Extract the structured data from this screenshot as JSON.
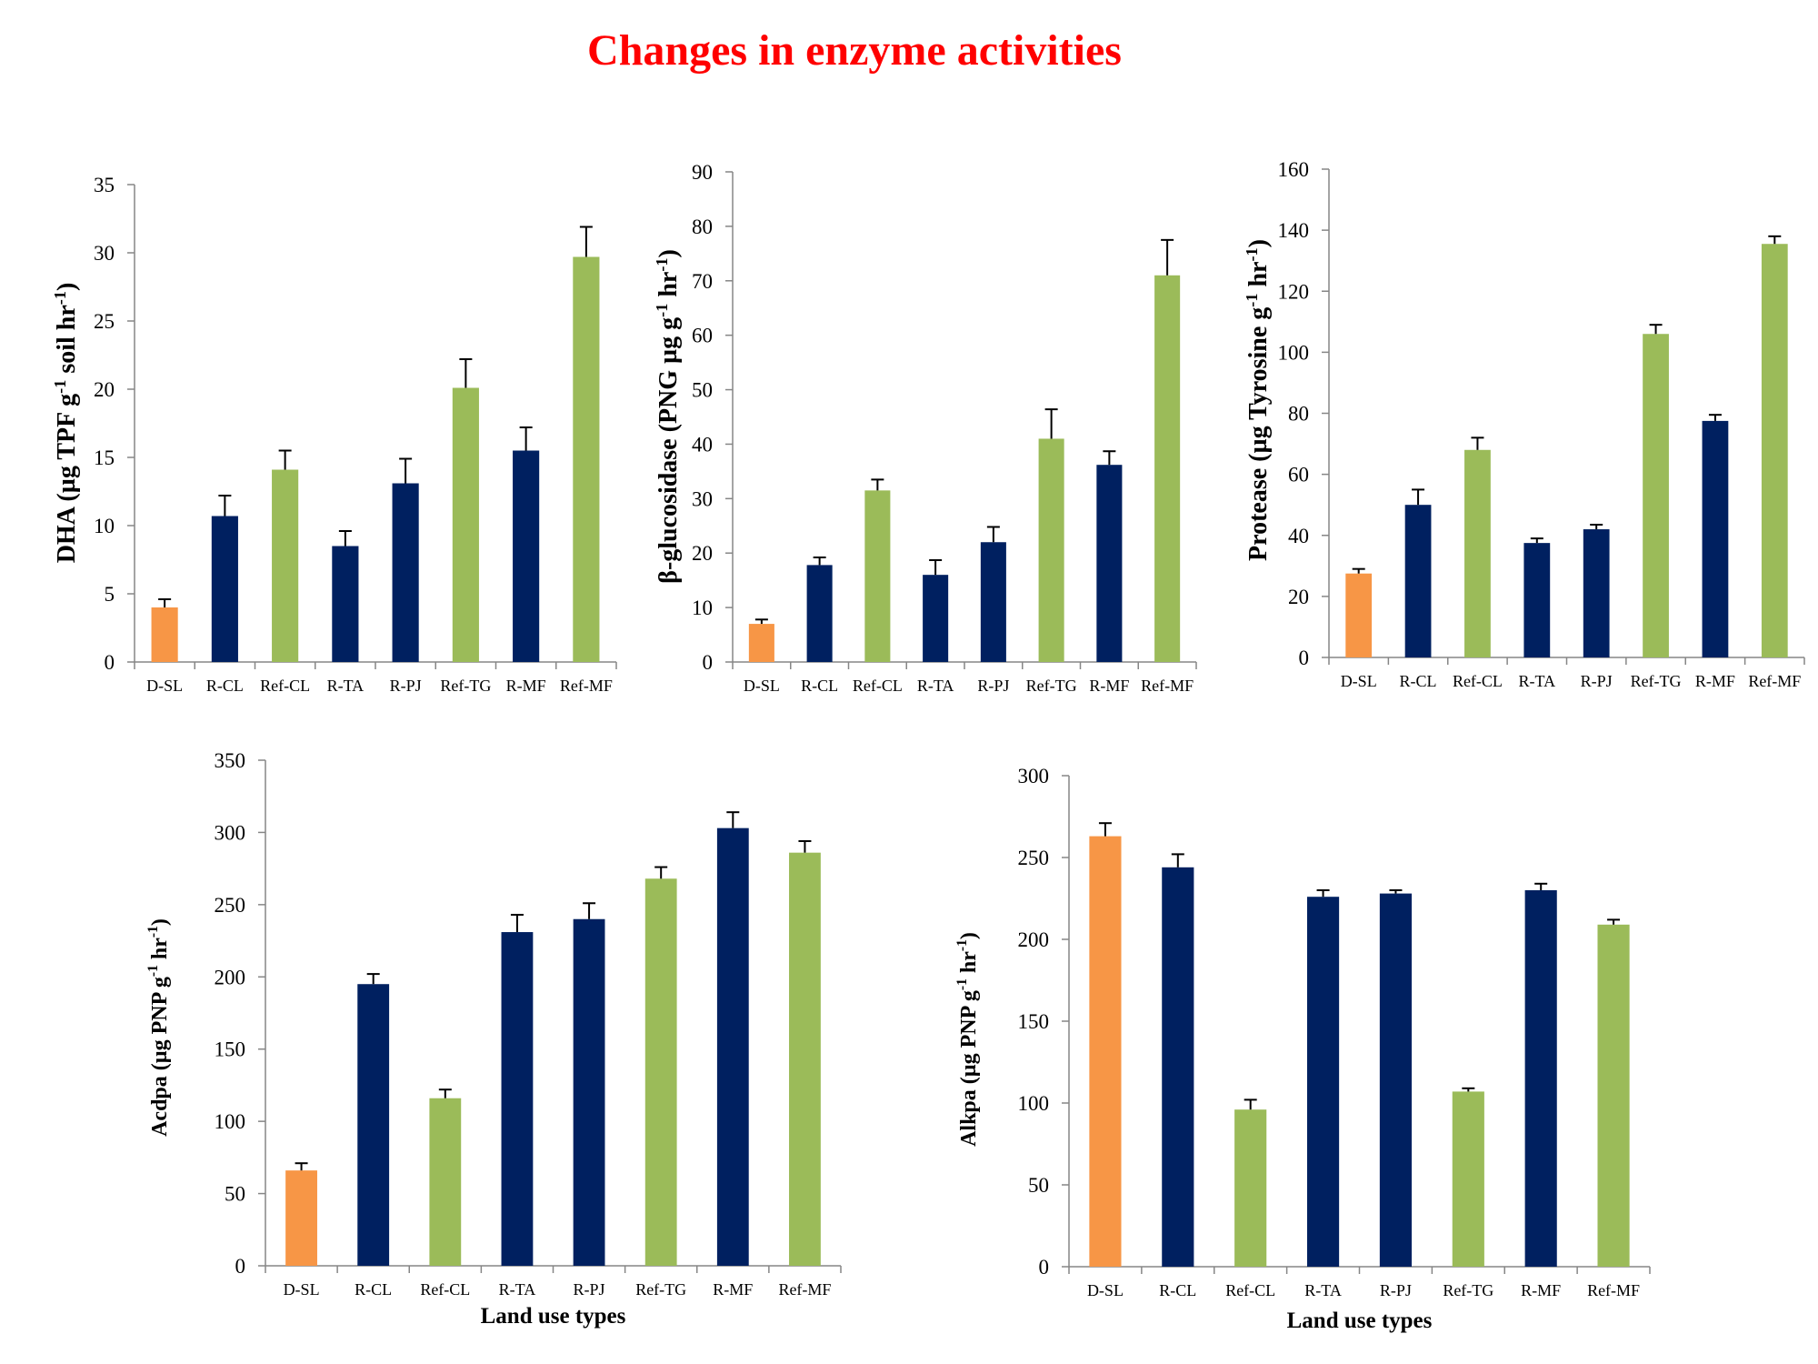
{
  "title": "Changes in enzyme activities",
  "colors": {
    "orange": "#f79646",
    "navy": "#002060",
    "green": "#9bbb59",
    "axis": "#868686"
  },
  "chart_data": [
    {
      "id": "dha",
      "type": "bar",
      "categories": [
        "D-SL",
        "R-CL",
        "Ref-CL",
        "R-TA",
        "R-PJ",
        "Ref-TG",
        "R-MF",
        "Ref-MF"
      ],
      "values": [
        4.0,
        10.7,
        14.1,
        8.5,
        13.1,
        20.1,
        15.5,
        29.7
      ],
      "errors": [
        0.6,
        1.5,
        1.4,
        1.1,
        1.8,
        2.1,
        1.7,
        2.2
      ],
      "bar_colors": [
        "orange",
        "navy",
        "green",
        "navy",
        "navy",
        "green",
        "navy",
        "green"
      ],
      "ylim": [
        0,
        35
      ],
      "yticks": [
        "0",
        "5",
        "10",
        "15",
        "20",
        "25",
        "30",
        "35"
      ],
      "ylabel": {
        "main": "DHA (µg TPF g",
        "sup1": "-1",
        "mid": " soil hr",
        "sup2": "-1",
        "end": ")"
      },
      "xlabel": ""
    },
    {
      "id": "glucosidase",
      "type": "bar",
      "categories": [
        "D-SL",
        "R-CL",
        "Ref-CL",
        "R-TA",
        "R-PJ",
        "Ref-TG",
        "R-MF",
        "Ref-MF"
      ],
      "values": [
        7.0,
        17.8,
        31.5,
        16.0,
        22.0,
        41.0,
        36.2,
        71.0
      ],
      "errors": [
        0.8,
        1.4,
        2.0,
        2.7,
        2.8,
        5.4,
        2.5,
        6.5
      ],
      "bar_colors": [
        "orange",
        "navy",
        "green",
        "navy",
        "navy",
        "green",
        "navy",
        "green"
      ],
      "ylim": [
        0,
        90
      ],
      "yticks": [
        "0",
        "10",
        "20",
        "30",
        "40",
        "50",
        "60",
        "70",
        "80",
        "90"
      ],
      "ylabel": {
        "main": "β-glucosidase (PNG  µg g",
        "sup1": "-1",
        "mid": "  hr",
        "sup2": "-1",
        "end": ")"
      },
      "xlabel": ""
    },
    {
      "id": "protease",
      "type": "bar",
      "categories": [
        "D-SL",
        "R-CL",
        "Ref-CL",
        "R-TA",
        "R-PJ",
        "Ref-TG",
        "R-MF",
        "Ref-MF"
      ],
      "values": [
        27.5,
        50.0,
        68.0,
        37.5,
        42.0,
        106.0,
        77.5,
        135.5
      ],
      "errors": [
        1.5,
        5.0,
        4.0,
        1.5,
        1.5,
        3.0,
        2.0,
        2.5
      ],
      "bar_colors": [
        "orange",
        "navy",
        "green",
        "navy",
        "navy",
        "green",
        "navy",
        "green"
      ],
      "ylim": [
        0,
        160
      ],
      "yticks": [
        "0",
        "20",
        "40",
        "60",
        "80",
        "100",
        "120",
        "140",
        "160"
      ],
      "ylabel": {
        "main": "Protease (µg Tyrosine g",
        "sup1": "-1",
        "mid": " hr",
        "sup2": "-1",
        "end": ")"
      },
      "xlabel": ""
    },
    {
      "id": "acdpa",
      "type": "bar",
      "categories": [
        "D-SL",
        "R-CL",
        "Ref-CL",
        "R-TA",
        "R-PJ",
        "Ref-TG",
        "R-MF",
        "Ref-MF"
      ],
      "values": [
        66,
        195,
        116,
        231,
        240,
        268,
        303,
        286
      ],
      "errors": [
        5,
        7,
        6,
        12,
        11,
        8,
        11,
        8
      ],
      "bar_colors": [
        "orange",
        "navy",
        "green",
        "navy",
        "navy",
        "green",
        "navy",
        "green"
      ],
      "ylim": [
        0,
        350
      ],
      "yticks": [
        "0",
        "50",
        "100",
        "150",
        "200",
        "250",
        "300",
        "350"
      ],
      "ylabel": {
        "main": "Acdpa (µg PNP g",
        "sup1": "-1",
        "mid": " hr",
        "sup2": "-1",
        "end": ")"
      },
      "xlabel": "Land use types"
    },
    {
      "id": "alkpa",
      "type": "bar",
      "categories": [
        "D-SL",
        "R-CL",
        "Ref-CL",
        "R-TA",
        "R-PJ",
        "Ref-TG",
        "R-MF",
        "Ref-MF"
      ],
      "values": [
        263,
        244,
        96,
        226,
        228,
        107,
        230,
        209
      ],
      "errors": [
        8,
        8,
        6,
        4,
        2,
        2,
        4,
        3
      ],
      "bar_colors": [
        "orange",
        "navy",
        "green",
        "navy",
        "navy",
        "green",
        "navy",
        "green"
      ],
      "ylim": [
        0,
        300
      ],
      "yticks": [
        "0",
        "50",
        "100",
        "150",
        "200",
        "250",
        "300"
      ],
      "ylabel": {
        "main": "Alkpa (µg PNP g",
        "sup1": "-1",
        "mid": " hr",
        "sup2": "-1",
        "end": ")"
      },
      "xlabel": "Land use types"
    }
  ]
}
